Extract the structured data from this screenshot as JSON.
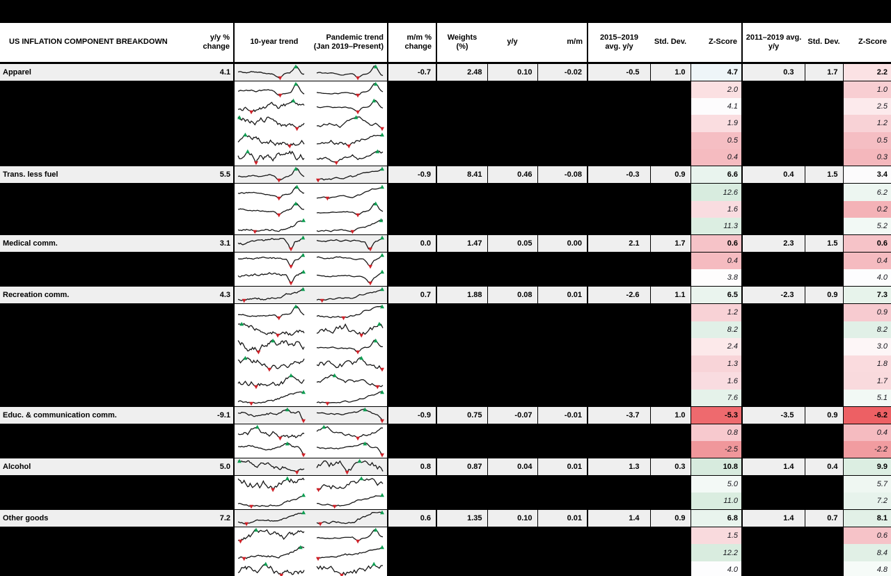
{
  "header": {
    "component": "US INFLATION COMPONENT BREAKDOWN",
    "yoy_change": "y/y %\nchange",
    "trend_10yr": "10-year trend",
    "pandemic_trend": "Pandemic trend\n(Jan 2019–Present)",
    "mm_change": "m/m %\nchange",
    "weights": "Weights\n(%)",
    "yy": "y/y",
    "mm": "m/m",
    "avg_2015_2019": "2015–2019\navg. y/y",
    "std_dev": "Std. Dev.",
    "z_score": "Z-Score",
    "avg_2011_2019": "2011–2019 avg.\ny/y"
  },
  "colors": {
    "page_bg": "#000000",
    "main_row_bg": "#efefef",
    "header_bg": "#ffffff",
    "spark_line": "#161616",
    "marker_max_green": "#0e9f52",
    "marker_min_red": "#cf2128",
    "z_neg_strong": "#ee6a6e",
    "z_pos_strong": "#d8ecdf"
  },
  "chart_data": {
    "type": "table",
    "columns": [
      "Component",
      "y/y % change",
      "10-year trend",
      "Pandemic trend (Jan 2019–Present)",
      "m/m % change",
      "Weights (%)",
      "y/y",
      "m/m",
      "2015–2019 avg. y/y",
      "Std. Dev.",
      "Z-Score",
      "2011–2019 avg. y/y",
      "Std. Dev.",
      "Z-Score"
    ],
    "rows": [
      {
        "type": "main",
        "name": "Apparel",
        "yoy": "4.1",
        "mmc": "-0.7",
        "w": "2.48",
        "yy": "0.10",
        "mm": "-0.02",
        "a1": "-0.5",
        "s1": "1.0",
        "z1": "4.7",
        "z1_bg": "#eef5f8",
        "a2": "0.3",
        "s2": "1.7",
        "z2": "2.2",
        "z2_bg": "#fbe2e4",
        "s": [
          11,
          "spike",
          12,
          "spike"
        ]
      },
      {
        "type": "sub",
        "z1": "2.0",
        "z1_bg": "#fbe0e2",
        "z2": "1.0",
        "z2_bg": "#f8ced2",
        "s": [
          13,
          "spike",
          14,
          "spike"
        ]
      },
      {
        "type": "sub",
        "z1": "4.1",
        "z1_bg": "#fdfcfd",
        "z2": "2.5",
        "z2_bg": "#fceaec",
        "s": [
          15,
          "wavy",
          16,
          "spike"
        ]
      },
      {
        "type": "sub",
        "z1": "1.9",
        "z1_bg": "#fadde0",
        "z2": "1.2",
        "z2_bg": "#f8d2d6",
        "s": [
          17,
          "wavy",
          18,
          "wavy"
        ]
      },
      {
        "type": "sub",
        "z1": "0.5",
        "z1_bg": "#f5bec3",
        "z2": "0.5",
        "z2_bg": "#f5bec3",
        "s": [
          19,
          "wavy",
          20,
          "rise"
        ]
      },
      {
        "type": "sub",
        "z1": "0.4",
        "z1_bg": "#f5bbc0",
        "z2": "0.3",
        "z2_bg": "#f4b7bc",
        "s": [
          21,
          "wavy",
          22,
          "wavy"
        ]
      },
      {
        "type": "main",
        "name": "Trans. less fuel",
        "yoy": "5.5",
        "mmc": "-0.9",
        "w": "8.41",
        "yy": "0.46",
        "mm": "-0.08",
        "a1": "-0.3",
        "s1": "0.9",
        "z1": "6.6",
        "z1_bg": "#e9f4ee",
        "a2": "0.4",
        "s2": "1.5",
        "z2": "3.4",
        "z2_bg": "#fcfbfc",
        "s": [
          23,
          "spike",
          24,
          "rise"
        ]
      },
      {
        "type": "sub",
        "z1": "12.6",
        "z1_bg": "#d8ecdf",
        "z2": "6.2",
        "z2_bg": "#edf6f1",
        "s": [
          25,
          "spike",
          26,
          "rise"
        ]
      },
      {
        "type": "sub",
        "z1": "1.6",
        "z1_bg": "#f9dce0",
        "z2": "0.2",
        "z2_bg": "#f4b2b7",
        "s": [
          27,
          "spike",
          28,
          "spike"
        ]
      },
      {
        "type": "sub",
        "z1": "11.3",
        "z1_bg": "#dceee2",
        "z2": "5.2",
        "z2_bg": "#f2f9f5",
        "s": [
          29,
          "rise",
          30,
          "rise"
        ]
      },
      {
        "type": "main",
        "name": "Medical comm.",
        "yoy": "3.1",
        "mmc": "0.0",
        "w": "1.47",
        "yy": "0.05",
        "mm": "0.00",
        "a1": "2.1",
        "s1": "1.7",
        "z1": "0.6",
        "z1_bg": "#f6c3c8",
        "a2": "2.3",
        "s2": "1.5",
        "z2": "0.6",
        "z2_bg": "#f6c3c8",
        "s": [
          31,
          "dip",
          32,
          "dip"
        ]
      },
      {
        "type": "sub",
        "z1": "0.4",
        "z1_bg": "#f5bbc0",
        "z2": "0.4",
        "z2_bg": "#f5bbc0",
        "s": [
          33,
          "dip",
          34,
          "dip"
        ]
      },
      {
        "type": "sub",
        "z1": "3.8",
        "z1_bg": "#fefdfd",
        "z2": "4.0",
        "z2_bg": "#fdfdfe",
        "s": [
          35,
          "dip",
          36,
          "dip"
        ]
      },
      {
        "type": "main",
        "name": "Recreation comm.",
        "yoy": "4.3",
        "mmc": "0.7",
        "w": "1.88",
        "yy": "0.08",
        "mm": "0.01",
        "a1": "-2.6",
        "s1": "1.1",
        "z1": "6.5",
        "z1_bg": "#eaf4ee",
        "a2": "-2.3",
        "s2": "0.9",
        "z2": "7.3",
        "z2_bg": "#e7f3eb",
        "s": [
          37,
          "rise",
          38,
          "rise"
        ]
      },
      {
        "type": "sub",
        "z1": "1.2",
        "z1_bg": "#f8d2d6",
        "z2": "0.9",
        "z2_bg": "#f7cbd0",
        "s": [
          39,
          "spike",
          40,
          "rise"
        ]
      },
      {
        "type": "sub",
        "z1": "8.2",
        "z1_bg": "#e1f0e7",
        "z2": "8.2",
        "z2_bg": "#e1f0e7",
        "s": [
          41,
          "wavy",
          42,
          "wavy"
        ]
      },
      {
        "type": "sub",
        "z1": "2.4",
        "z1_bg": "#fce9ea",
        "z2": "3.0",
        "z2_bg": "#fdf6f7",
        "s": [
          43,
          "wavy",
          44,
          "spike"
        ]
      },
      {
        "type": "sub",
        "z1": "1.3",
        "z1_bg": "#f8d4d8",
        "z2": "1.8",
        "z2_bg": "#fadbde",
        "s": [
          45,
          "wavy",
          46,
          "wavy"
        ]
      },
      {
        "type": "sub",
        "z1": "1.6",
        "z1_bg": "#f9dce0",
        "z2": "1.7",
        "z2_bg": "#f9dadd",
        "s": [
          47,
          "wavy",
          48,
          "wavy"
        ]
      },
      {
        "type": "sub",
        "z1": "7.6",
        "z1_bg": "#e5f2ea",
        "z2": "5.1",
        "z2_bg": "#f2f9f5",
        "s": [
          49,
          "rise",
          50,
          "rise"
        ]
      },
      {
        "type": "main",
        "name": "Educ. & communication comm.",
        "yoy": "-9.1",
        "mmc": "-0.9",
        "w": "0.75",
        "yy": "-0.07",
        "mm": "-0.01",
        "a1": "-3.7",
        "s1": "1.0",
        "z1": "-5.3",
        "z1_bg": "#ee6a6e",
        "a2": "-3.5",
        "s2": "0.9",
        "z2": "-6.2",
        "z2_bg": "#ed6064",
        "s": [
          51,
          "drop",
          52,
          "drop"
        ]
      },
      {
        "type": "sub",
        "z1": "0.8",
        "z1_bg": "#f7c9ce",
        "z2": "0.4",
        "z2_bg": "#f5bbc0",
        "s": [
          53,
          "wavy",
          54,
          "wavy"
        ]
      },
      {
        "type": "sub",
        "z1": "-2.5",
        "z1_bg": "#f0979b",
        "z2": "-2.2",
        "z2_bg": "#f19ca0",
        "s": [
          55,
          "drop",
          56,
          "drop"
        ]
      },
      {
        "type": "main",
        "name": "Alcohol",
        "yoy": "5.0",
        "mmc": "0.8",
        "w": "0.87",
        "yy": "0.04",
        "mm": "0.01",
        "a1": "1.3",
        "s1": "0.3",
        "z1": "10.8",
        "z1_bg": "#d7ebde",
        "a2": "1.4",
        "s2": "0.4",
        "z2": "9.9",
        "z2_bg": "#dceee2",
        "s": [
          57,
          "wavy",
          58,
          "wavy"
        ]
      },
      {
        "type": "sub",
        "z1": "5.0",
        "z1_bg": "#f3f9f6",
        "z2": "5.7",
        "z2_bg": "#eff7f2",
        "s": [
          59,
          "wavy",
          60,
          "wavy"
        ]
      },
      {
        "type": "sub",
        "z1": "11.0",
        "z1_bg": "#daede0",
        "z2": "7.2",
        "z2_bg": "#e7f3ec",
        "s": [
          61,
          "rise",
          62,
          "rise"
        ]
      },
      {
        "type": "main",
        "name": "Other goods",
        "yoy": "7.2",
        "mmc": "0.6",
        "w": "1.35",
        "yy": "0.10",
        "mm": "0.01",
        "a1": "1.4",
        "s1": "0.9",
        "z1": "6.8",
        "z1_bg": "#e9f4ed",
        "a2": "1.4",
        "s2": "0.7",
        "z2": "8.1",
        "z2_bg": "#e2f0e7",
        "s": [
          63,
          "rise",
          64,
          "rise"
        ]
      },
      {
        "type": "sub",
        "z1": "1.5",
        "z1_bg": "#f9dadd",
        "z2": "0.6",
        "z2_bg": "#f6c3c8",
        "s": [
          65,
          "wavy",
          66,
          "spike"
        ]
      },
      {
        "type": "sub",
        "z1": "12.2",
        "z1_bg": "#d9ecdf",
        "z2": "8.4",
        "z2_bg": "#e1f0e6",
        "s": [
          67,
          "rise",
          68,
          "rise"
        ]
      },
      {
        "type": "sub",
        "z1": "4.0",
        "z1_bg": "#fdfdfe",
        "z2": "4.8",
        "z2_bg": "#f6fbf8",
        "s": [
          69,
          "wavy",
          70,
          "wavy"
        ]
      }
    ]
  }
}
